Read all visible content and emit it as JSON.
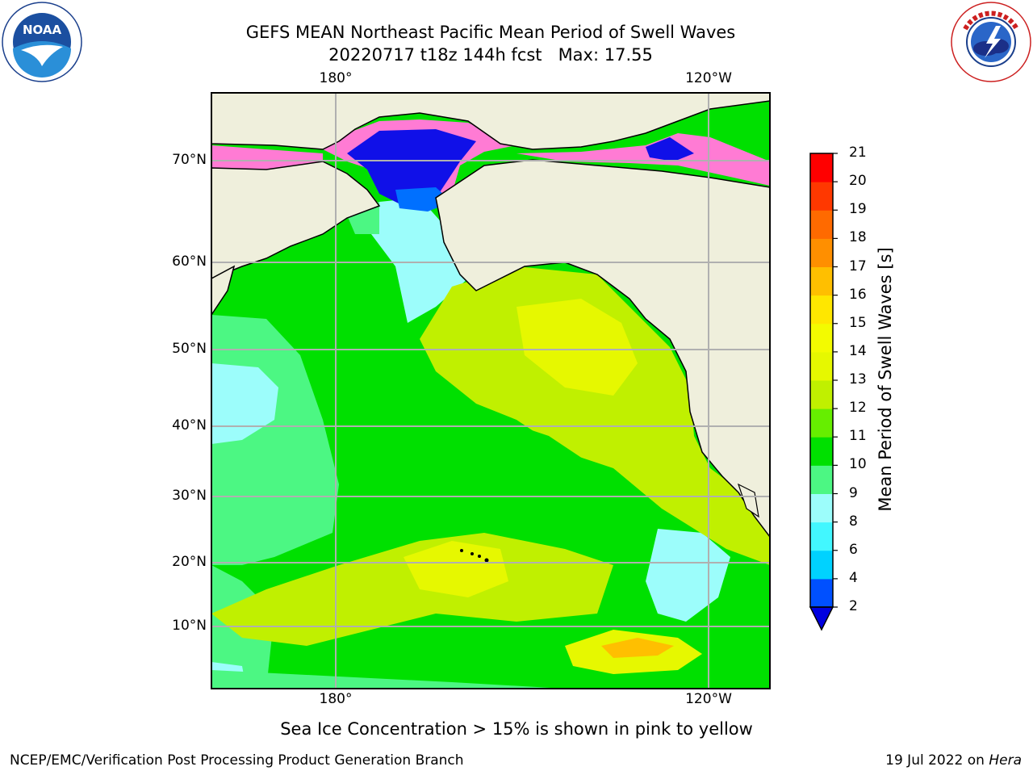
{
  "header": {
    "title_line1": "GEFS MEAN Northeast Pacific Mean Period of Swell Waves",
    "title_line2": "20220717 t18z 144h fcst   Max: 17.55"
  },
  "logos": {
    "left": {
      "icon": "noaa-logo-icon",
      "text": "NOAA"
    },
    "right": {
      "icon": "nws-logo-icon"
    }
  },
  "map": {
    "top_lon_labels": [
      "180°",
      "120°W"
    ],
    "bottom_lon_labels": [
      "180°",
      "120°W"
    ],
    "lat_labels": [
      "70°N",
      "60°N",
      "50°N",
      "40°N",
      "30°N",
      "20°N",
      "10°N"
    ],
    "land_color": "#efefdc",
    "grid_color": "#b0b0b0"
  },
  "colorbar": {
    "title": "Mean Period of Swell Waves [s]",
    "ticks": [
      "2",
      "4",
      "6",
      "8",
      "9",
      "10",
      "11",
      "12",
      "13",
      "14",
      "15",
      "16",
      "17",
      "18",
      "19",
      "20",
      "21"
    ],
    "colors": [
      "#0050ff",
      "#00d2ff",
      "#42f7ff",
      "#9cfdfb",
      "#4cf783",
      "#00e000",
      "#66ee00",
      "#c0f000",
      "#e6f800",
      "#f3fb00",
      "#ffe700",
      "#ffbf00",
      "#ff8f00",
      "#ff6a00",
      "#ff3800",
      "#ff0000"
    ],
    "under_color": "#0000e0"
  },
  "footer": {
    "note": "Sea Ice Concentration > 15% is shown in pink to yellow",
    "credit": "NCEP/EMC/Verification Post Processing Product Generation Branch",
    "date": "19 Jul 2022 on ",
    "machine": "Hera"
  }
}
